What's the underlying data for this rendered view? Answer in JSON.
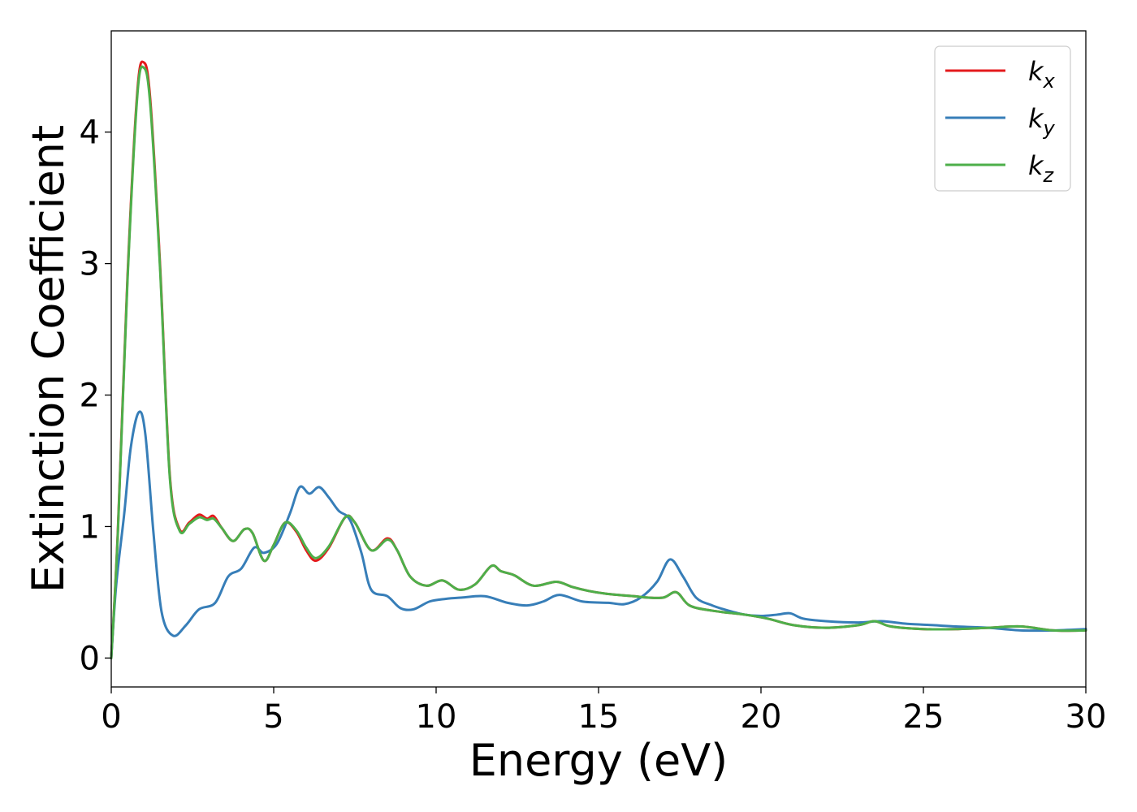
{
  "chart_data": {
    "type": "line",
    "title": "",
    "xlabel": "Energy (eV)",
    "ylabel": "Extinction Coefficient",
    "xlim": [
      0,
      30
    ],
    "ylim": [
      -0.22,
      4.77
    ],
    "xticks": [
      0,
      5,
      10,
      15,
      20,
      25,
      30
    ],
    "yticks": [
      0,
      1,
      2,
      3,
      4
    ],
    "grid": false,
    "legend_position": "top-right",
    "series": [
      {
        "name": "k",
        "subscript": "x",
        "color": "#e41a1c",
        "points": [
          [
            0,
            0
          ],
          [
            0.2,
            0.95
          ],
          [
            0.5,
            2.9
          ],
          [
            0.8,
            4.3
          ],
          [
            1.0,
            4.53
          ],
          [
            1.2,
            4.25
          ],
          [
            1.5,
            3.0
          ],
          [
            1.8,
            1.4
          ],
          [
            2.1,
            0.98
          ],
          [
            2.4,
            1.03
          ],
          [
            2.7,
            1.09
          ],
          [
            2.95,
            1.06
          ],
          [
            3.15,
            1.08
          ],
          [
            3.4,
            0.99
          ],
          [
            3.75,
            0.89
          ],
          [
            4.1,
            0.98
          ],
          [
            4.35,
            0.95
          ],
          [
            4.7,
            0.74
          ],
          [
            5.0,
            0.86
          ],
          [
            5.35,
            1.03
          ],
          [
            5.7,
            0.96
          ],
          [
            6.0,
            0.82
          ],
          [
            6.3,
            0.74
          ],
          [
            6.7,
            0.84
          ],
          [
            7.2,
            1.07
          ],
          [
            7.5,
            1.03
          ],
          [
            8.0,
            0.82
          ],
          [
            8.5,
            0.91
          ],
          [
            8.8,
            0.82
          ],
          [
            9.2,
            0.62
          ],
          [
            9.7,
            0.55
          ],
          [
            10.2,
            0.59
          ],
          [
            10.7,
            0.52
          ],
          [
            11.2,
            0.56
          ],
          [
            11.7,
            0.7
          ],
          [
            12.0,
            0.66
          ],
          [
            12.4,
            0.63
          ],
          [
            13.0,
            0.55
          ],
          [
            13.7,
            0.58
          ],
          [
            14.2,
            0.54
          ],
          [
            14.7,
            0.51
          ],
          [
            15.2,
            0.49
          ],
          [
            15.6,
            0.48
          ],
          [
            16.1,
            0.47
          ],
          [
            16.5,
            0.46
          ],
          [
            17.0,
            0.46
          ],
          [
            17.4,
            0.5
          ],
          [
            17.8,
            0.4
          ],
          [
            18.5,
            0.36
          ],
          [
            19.5,
            0.33
          ],
          [
            20.2,
            0.3
          ],
          [
            21.0,
            0.25
          ],
          [
            22.0,
            0.23
          ],
          [
            23.0,
            0.25
          ],
          [
            23.5,
            0.28
          ],
          [
            24.0,
            0.24
          ],
          [
            25.0,
            0.22
          ],
          [
            26.0,
            0.22
          ],
          [
            27.0,
            0.23
          ],
          [
            28.0,
            0.24
          ],
          [
            29.0,
            0.21
          ],
          [
            30.0,
            0.21
          ]
        ]
      },
      {
        "name": "k",
        "subscript": "y",
        "color": "#377eb8",
        "points": [
          [
            0,
            0
          ],
          [
            0.15,
            0.55
          ],
          [
            0.4,
            1.1
          ],
          [
            0.6,
            1.6
          ],
          [
            0.85,
            1.87
          ],
          [
            1.05,
            1.7
          ],
          [
            1.3,
            0.95
          ],
          [
            1.55,
            0.35
          ],
          [
            1.9,
            0.17
          ],
          [
            2.3,
            0.25
          ],
          [
            2.7,
            0.37
          ],
          [
            3.2,
            0.42
          ],
          [
            3.6,
            0.62
          ],
          [
            4.0,
            0.68
          ],
          [
            4.4,
            0.84
          ],
          [
            4.7,
            0.8
          ],
          [
            5.1,
            0.87
          ],
          [
            5.5,
            1.1
          ],
          [
            5.8,
            1.3
          ],
          [
            6.1,
            1.25
          ],
          [
            6.4,
            1.3
          ],
          [
            6.7,
            1.22
          ],
          [
            7.0,
            1.12
          ],
          [
            7.35,
            1.05
          ],
          [
            7.7,
            0.8
          ],
          [
            8.0,
            0.52
          ],
          [
            8.5,
            0.47
          ],
          [
            8.9,
            0.38
          ],
          [
            9.3,
            0.37
          ],
          [
            9.8,
            0.43
          ],
          [
            10.3,
            0.45
          ],
          [
            10.8,
            0.46
          ],
          [
            11.5,
            0.47
          ],
          [
            12.2,
            0.42
          ],
          [
            12.8,
            0.4
          ],
          [
            13.3,
            0.43
          ],
          [
            13.8,
            0.48
          ],
          [
            14.5,
            0.43
          ],
          [
            15.3,
            0.42
          ],
          [
            15.8,
            0.41
          ],
          [
            16.3,
            0.46
          ],
          [
            16.8,
            0.58
          ],
          [
            17.2,
            0.75
          ],
          [
            17.6,
            0.62
          ],
          [
            18.0,
            0.46
          ],
          [
            18.5,
            0.4
          ],
          [
            19.0,
            0.36
          ],
          [
            19.5,
            0.33
          ],
          [
            20.0,
            0.32
          ],
          [
            20.5,
            0.33
          ],
          [
            20.9,
            0.34
          ],
          [
            21.3,
            0.3
          ],
          [
            22.0,
            0.28
          ],
          [
            23.0,
            0.27
          ],
          [
            23.7,
            0.28
          ],
          [
            24.5,
            0.26
          ],
          [
            25.3,
            0.25
          ],
          [
            26.0,
            0.24
          ],
          [
            27.0,
            0.23
          ],
          [
            28.0,
            0.21
          ],
          [
            29.0,
            0.21
          ],
          [
            30.0,
            0.22
          ]
        ]
      },
      {
        "name": "k",
        "subscript": "z",
        "color": "#4daf4a",
        "points": [
          [
            0,
            0
          ],
          [
            0.2,
            0.93
          ],
          [
            0.5,
            2.87
          ],
          [
            0.8,
            4.27
          ],
          [
            1.0,
            4.49
          ],
          [
            1.2,
            4.21
          ],
          [
            1.5,
            2.97
          ],
          [
            1.8,
            1.38
          ],
          [
            2.1,
            0.97
          ],
          [
            2.4,
            1.02
          ],
          [
            2.7,
            1.07
          ],
          [
            2.95,
            1.05
          ],
          [
            3.15,
            1.06
          ],
          [
            3.4,
            0.99
          ],
          [
            3.75,
            0.89
          ],
          [
            4.1,
            0.98
          ],
          [
            4.35,
            0.95
          ],
          [
            4.7,
            0.74
          ],
          [
            5.0,
            0.86
          ],
          [
            5.35,
            1.03
          ],
          [
            5.7,
            0.97
          ],
          [
            6.0,
            0.84
          ],
          [
            6.3,
            0.76
          ],
          [
            6.7,
            0.85
          ],
          [
            7.2,
            1.07
          ],
          [
            7.5,
            1.03
          ],
          [
            8.0,
            0.82
          ],
          [
            8.5,
            0.9
          ],
          [
            8.8,
            0.82
          ],
          [
            9.2,
            0.62
          ],
          [
            9.7,
            0.55
          ],
          [
            10.2,
            0.59
          ],
          [
            10.7,
            0.52
          ],
          [
            11.2,
            0.56
          ],
          [
            11.7,
            0.7
          ],
          [
            12.0,
            0.66
          ],
          [
            12.4,
            0.63
          ],
          [
            13.0,
            0.55
          ],
          [
            13.7,
            0.58
          ],
          [
            14.2,
            0.54
          ],
          [
            14.7,
            0.51
          ],
          [
            15.2,
            0.49
          ],
          [
            15.6,
            0.48
          ],
          [
            16.1,
            0.47
          ],
          [
            16.5,
            0.46
          ],
          [
            17.0,
            0.46
          ],
          [
            17.4,
            0.5
          ],
          [
            17.8,
            0.4
          ],
          [
            18.5,
            0.36
          ],
          [
            19.5,
            0.33
          ],
          [
            20.2,
            0.3
          ],
          [
            21.0,
            0.25
          ],
          [
            22.0,
            0.23
          ],
          [
            23.0,
            0.25
          ],
          [
            23.5,
            0.28
          ],
          [
            24.0,
            0.24
          ],
          [
            25.0,
            0.22
          ],
          [
            26.0,
            0.22
          ],
          [
            27.0,
            0.23
          ],
          [
            28.0,
            0.24
          ],
          [
            29.0,
            0.21
          ],
          [
            30.0,
            0.21
          ]
        ]
      }
    ]
  }
}
